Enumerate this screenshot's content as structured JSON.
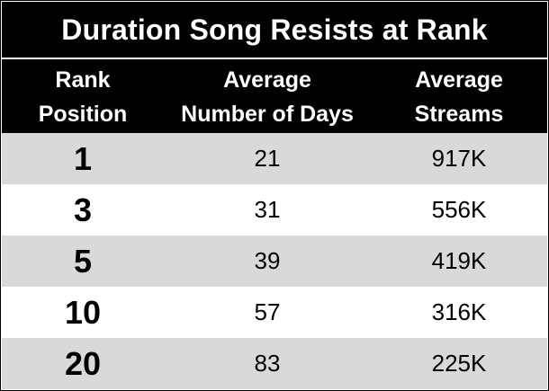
{
  "chart_data": {
    "type": "table",
    "title": "Duration Song Resists at Rank",
    "columns": [
      "Rank\nPosition",
      "Average\nNumber of Days",
      "Average\nStreams"
    ],
    "rows": [
      [
        "1",
        "21",
        "917K"
      ],
      [
        "3",
        "31",
        "556K"
      ],
      [
        "5",
        "39",
        "419K"
      ],
      [
        "10",
        "57",
        "316K"
      ],
      [
        "20",
        "83",
        "225K"
      ]
    ]
  },
  "colors": {
    "header_bg": "#000000",
    "header_text": "#ffffff",
    "shaded_row": "#d9d9d9",
    "plain_row": "#ffffff"
  }
}
